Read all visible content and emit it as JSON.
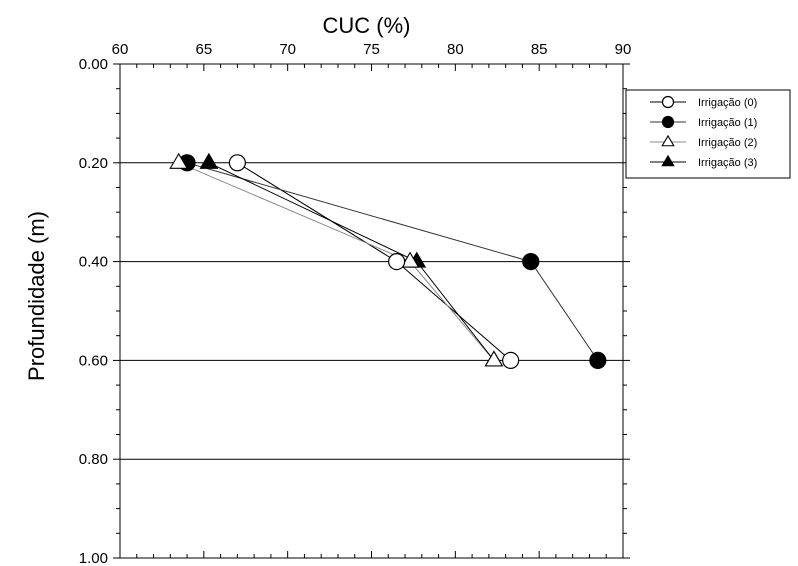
{
  "chart_data": {
    "type": "line",
    "xlabel": "CUC (%)",
    "ylabel": "Profundidade (m)",
    "xlim": [
      60,
      90
    ],
    "ylim": [
      0,
      1.0
    ],
    "y_inverted": true,
    "x_axis_position": "top",
    "x_ticks": [
      60,
      65,
      70,
      75,
      80,
      85,
      90
    ],
    "x_tick_labels": [
      "60",
      "65",
      "70",
      "75",
      "80",
      "85",
      "90"
    ],
    "y_ticks": [
      0,
      0.2,
      0.4,
      0.6,
      0.8,
      1.0
    ],
    "y_tick_labels": [
      "0.00",
      "0.20",
      "0.40",
      "0.60",
      "0.80",
      "1.00"
    ],
    "grid": "horizontal major lines",
    "legend_position": "top-right outside",
    "series": [
      {
        "name": "Irrigação (0)",
        "marker": "circle-open",
        "line_color": "#000000",
        "points": [
          [
            67.0,
            0.2
          ],
          [
            76.5,
            0.4
          ],
          [
            83.3,
            0.6
          ]
        ]
      },
      {
        "name": "Irrigação (1)",
        "marker": "circle-filled",
        "line_color": "#333333",
        "points": [
          [
            64.0,
            0.2
          ],
          [
            84.5,
            0.4
          ],
          [
            88.5,
            0.6
          ]
        ]
      },
      {
        "name": "Irrigação (2)",
        "marker": "triangle-open",
        "line_color": "#888888",
        "points": [
          [
            63.5,
            0.2
          ],
          [
            77.3,
            0.4
          ],
          [
            82.3,
            0.6
          ]
        ]
      },
      {
        "name": "Irrigação (3)",
        "marker": "triangle-filled",
        "line_color": "#000000",
        "points": [
          [
            65.3,
            0.2
          ],
          [
            77.7,
            0.4
          ],
          [
            82.3,
            0.6
          ]
        ]
      }
    ]
  }
}
